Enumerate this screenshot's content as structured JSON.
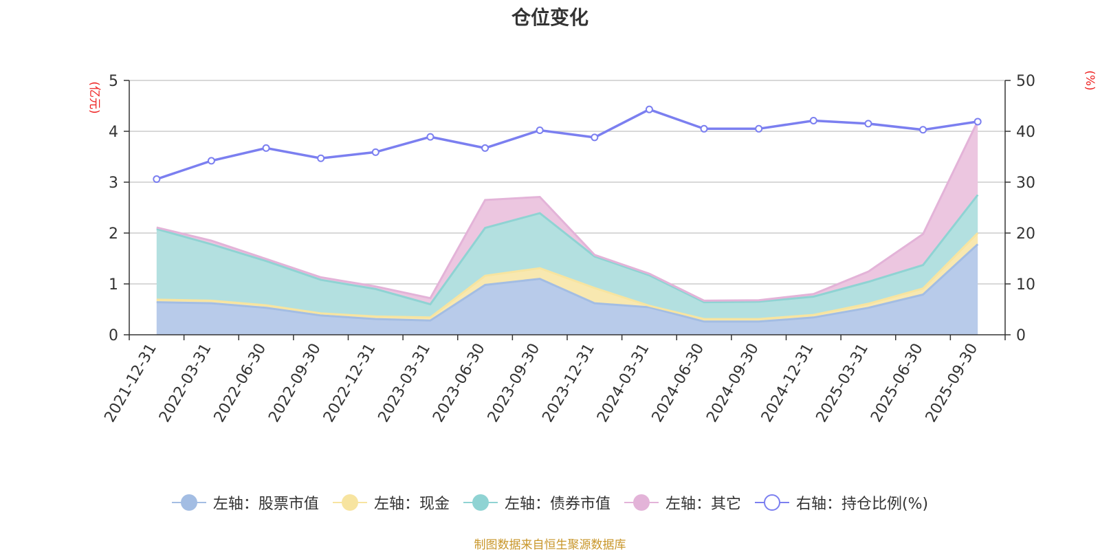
{
  "chart_data": {
    "type": "area",
    "title": "仓位变化",
    "categories": [
      "2021-12-31",
      "2022-03-31",
      "2022-06-30",
      "2022-09-30",
      "2022-12-31",
      "2023-03-31",
      "2023-06-30",
      "2023-09-30",
      "2023-12-31",
      "2024-03-31",
      "2024-06-30",
      "2024-09-30",
      "2024-12-31",
      "2025-03-31",
      "2025-06-30",
      "2025-09-30"
    ],
    "left_axis": {
      "unit": "(亿元)",
      "ylim": [
        0,
        5
      ],
      "ticks": [
        0,
        1,
        2,
        3,
        4,
        5
      ]
    },
    "right_axis": {
      "unit": "(%)",
      "ylim": [
        0,
        50
      ],
      "ticks": [
        0,
        10,
        20,
        30,
        40,
        50
      ]
    },
    "series": [
      {
        "name": "左轴：股票市值",
        "axis": "left",
        "stack": true,
        "color": "#a3bde3",
        "fill": "#b8cbea",
        "values": [
          0.64,
          0.62,
          0.53,
          0.38,
          0.31,
          0.28,
          0.98,
          1.1,
          0.62,
          0.54,
          0.26,
          0.26,
          0.34,
          0.53,
          0.79,
          1.78
        ]
      },
      {
        "name": "左轴：现金",
        "axis": "left",
        "stack": true,
        "color": "#f7e4a0",
        "fill": "#f8e8b0",
        "values": [
          0.05,
          0.05,
          0.05,
          0.04,
          0.05,
          0.06,
          0.18,
          0.21,
          0.3,
          0.03,
          0.05,
          0.05,
          0.05,
          0.08,
          0.12,
          0.22
        ]
      },
      {
        "name": "左轴：债券市值",
        "axis": "left",
        "stack": true,
        "color": "#8fd3d3",
        "fill": "#b3e0e0",
        "values": [
          1.39,
          1.11,
          0.87,
          0.66,
          0.54,
          0.26,
          0.94,
          1.08,
          0.62,
          0.6,
          0.33,
          0.34,
          0.36,
          0.43,
          0.46,
          0.75
        ]
      },
      {
        "name": "左轴：其它",
        "axis": "left",
        "stack": true,
        "color": "#e3b3d8",
        "fill": "#ecc6e0",
        "values": [
          0.03,
          0.07,
          0.04,
          0.05,
          0.05,
          0.12,
          0.55,
          0.32,
          0.03,
          0.03,
          0.03,
          0.03,
          0.05,
          0.2,
          0.61,
          1.45
        ]
      },
      {
        "name": "右轴：持仓比例(%)",
        "axis": "right",
        "stack": false,
        "type": "line",
        "color": "#7b7ff0",
        "values": [
          30.6,
          34.2,
          36.7,
          34.7,
          35.9,
          38.9,
          36.7,
          40.2,
          38.8,
          44.3,
          40.5,
          40.5,
          42.1,
          41.5,
          40.3,
          41.9
        ]
      }
    ]
  },
  "source": "制图数据来自恒生聚源数据库"
}
